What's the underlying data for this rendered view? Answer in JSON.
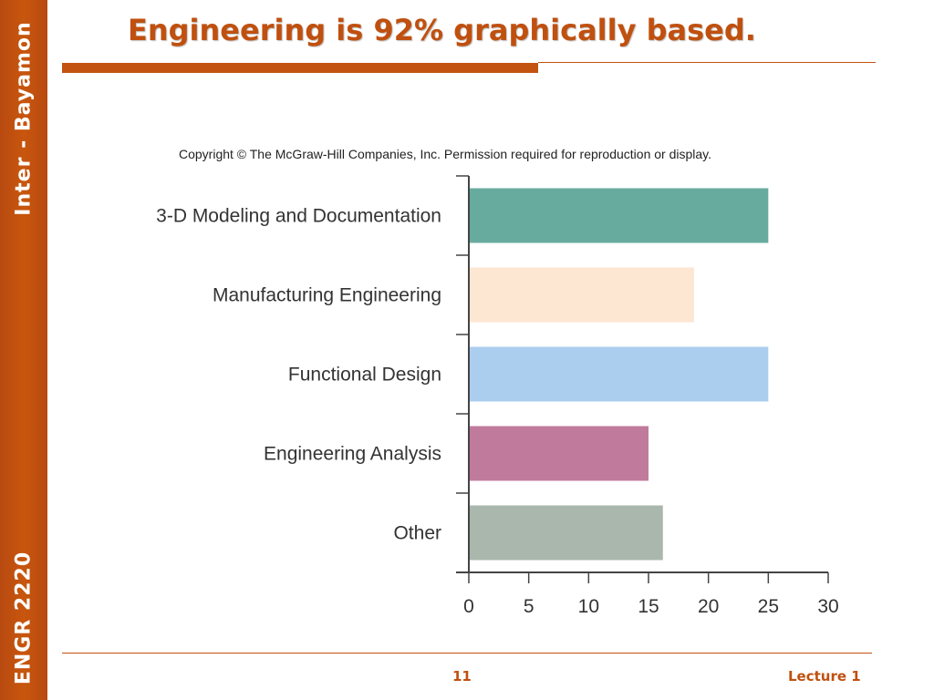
{
  "sidebar": {
    "top_text": "Inter - Bayamon",
    "bottom_text": "ENGR 2220"
  },
  "slide": {
    "title": "Engineering is 92% graphically based.",
    "copyright": "Copyright © The McGraw-Hill Companies, Inc. Permission required for reproduction or display.",
    "page_number": "11",
    "footer_label": "Lecture 1"
  },
  "colors": {
    "accent": "#c0500f",
    "bar_colors": [
      "#67ab9f",
      "#fde6d2",
      "#abcdee",
      "#c07b9c",
      "#a9b7ad"
    ]
  },
  "chart_data": {
    "type": "bar",
    "orientation": "horizontal",
    "categories": [
      "3-D Modeling and Documentation",
      "Manufacturing Engineering",
      "Functional Design",
      "Engineering Analysis",
      "Other"
    ],
    "values": [
      25,
      18.8,
      25,
      15,
      16.2
    ],
    "xlim": [
      0,
      30
    ],
    "xticks": [
      0,
      5,
      10,
      15,
      20,
      25,
      30
    ],
    "grid": false,
    "legend": "none"
  }
}
